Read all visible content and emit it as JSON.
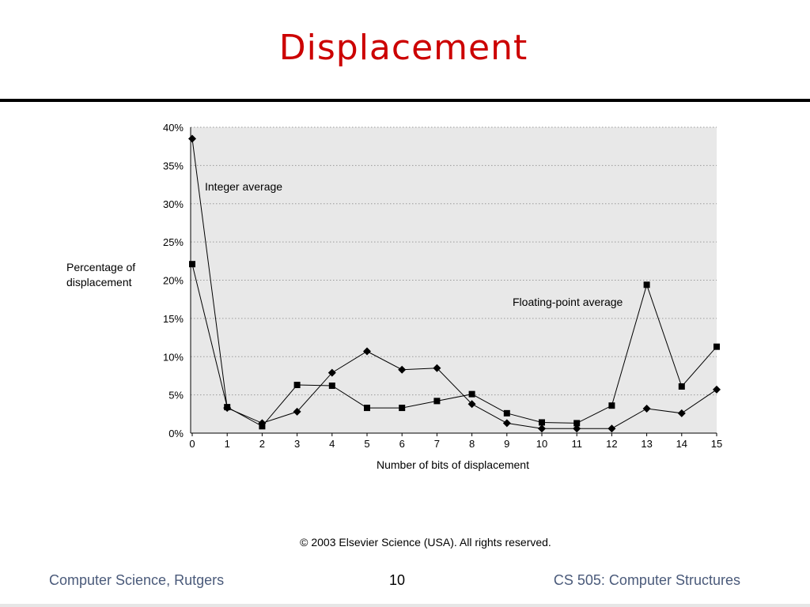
{
  "slide": {
    "title": "Displacement",
    "copyright": "© 2003 Elsevier Science (USA). All rights reserved.",
    "footer_left": "Computer Science, Rutgers",
    "footer_center": "10",
    "footer_right": "CS 505: Computer Structures"
  },
  "chart_data": {
    "type": "line",
    "title": "",
    "xlabel": "Number of bits of displacement",
    "ylabel": "Percentage of displacement",
    "ylabel_lines": [
      "Percentage of",
      "displacement"
    ],
    "x": [
      0,
      1,
      2,
      3,
      4,
      5,
      6,
      7,
      8,
      9,
      10,
      11,
      12,
      13,
      14,
      15
    ],
    "xticks": [
      "0",
      "1",
      "2",
      "3",
      "4",
      "5",
      "6",
      "7",
      "8",
      "9",
      "10",
      "11",
      "12",
      "13",
      "14",
      "15"
    ],
    "xlim": [
      0,
      15
    ],
    "ylim": [
      0,
      40
    ],
    "yticks": [
      0,
      5,
      10,
      15,
      20,
      25,
      30,
      35,
      40
    ],
    "yticklabels": [
      "0%",
      "5%",
      "10%",
      "15%",
      "20%",
      "25%",
      "30%",
      "35%",
      "40%"
    ],
    "grid": true,
    "plot_background": "#e8e8e8",
    "line_color": "#000000",
    "series": [
      {
        "name": "Integer average",
        "marker": "diamond",
        "values": [
          38.5,
          3.3,
          1.3,
          2.8,
          7.9,
          10.7,
          8.3,
          8.5,
          3.8,
          1.3,
          0.6,
          0.6,
          0.6,
          3.2,
          2.6,
          5.7
        ]
      },
      {
        "name": "Floating-point average",
        "marker": "square",
        "values": [
          22.1,
          3.4,
          0.9,
          6.3,
          6.2,
          3.3,
          3.3,
          4.2,
          5.1,
          2.6,
          1.4,
          1.3,
          3.6,
          19.4,
          6.1,
          11.3
        ]
      }
    ]
  }
}
